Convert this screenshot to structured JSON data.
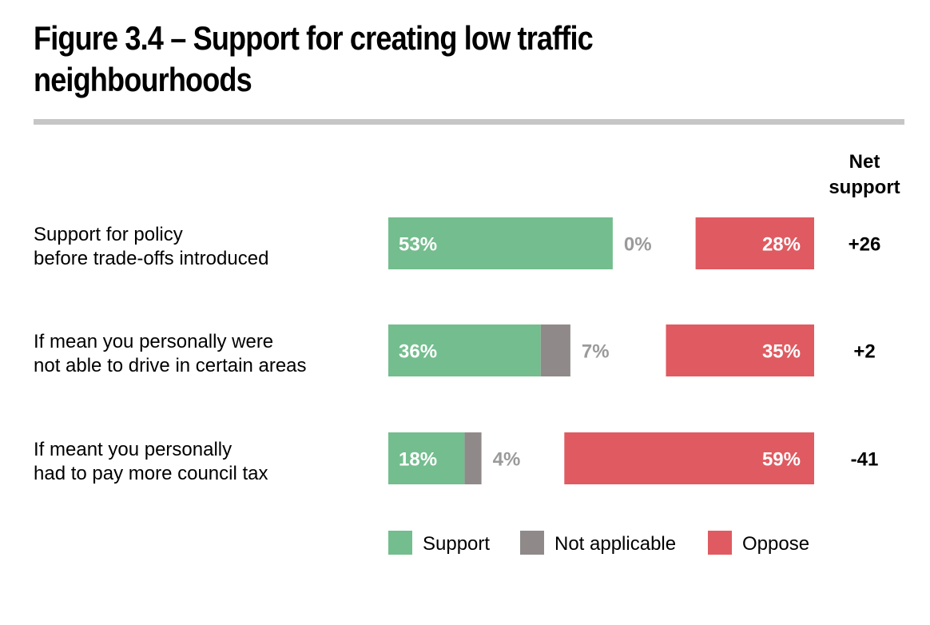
{
  "title": "Figure 3.4 – Support for creating low traffic neighbourhoods",
  "net_header": [
    "Net",
    "support"
  ],
  "chart_data": {
    "type": "bar",
    "stacked": true,
    "orientation": "horizontal",
    "categories": [
      [
        "Support for policy",
        "before trade-offs introduced"
      ],
      [
        "If mean you personally were",
        "not able to drive in certain areas"
      ],
      [
        "If meant you personally",
        "had to pay more council tax"
      ]
    ],
    "series": [
      {
        "name": "Support",
        "values": [
          53,
          36,
          18
        ],
        "labels": [
          "53%",
          "36%",
          "18%"
        ]
      },
      {
        "name": "Not applicable",
        "values": [
          0,
          7,
          4
        ],
        "labels": [
          "0%",
          "7%",
          "4%"
        ]
      },
      {
        "name": "Oppose",
        "values": [
          28,
          35,
          59
        ],
        "labels": [
          "28%",
          "35%",
          "59%"
        ]
      }
    ],
    "net_support": [
      "+26",
      "+2",
      "-41"
    ],
    "xlim": [
      0,
      100
    ],
    "legend": [
      "Support",
      "Not applicable",
      "Oppose"
    ],
    "legend_position": "bottom",
    "colors": {
      "Support": "#74bd8e",
      "Not applicable": "#8f8a89",
      "Oppose": "#df5b61",
      "na_label": "#9a9a9a"
    }
  }
}
